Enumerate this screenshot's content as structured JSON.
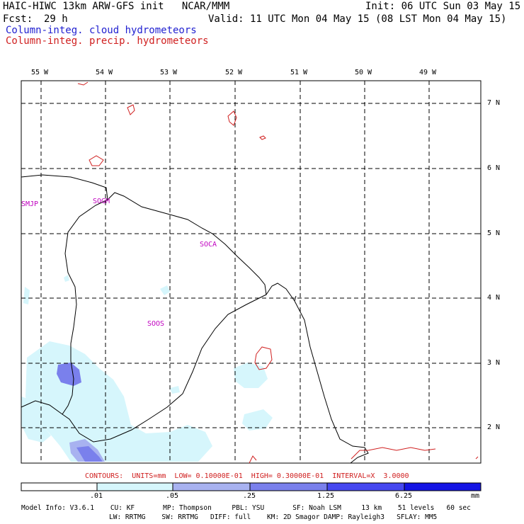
{
  "header": {
    "title": "HAIC-HIWC 13km ARW-GFS init   NCAR/MMM",
    "init": "Init: 06 UTC Sun 03 May 15",
    "fcst_label": "Fcst:",
    "fcst_value": "29 h",
    "valid": "Valid: 11 UTC Mon 04 May 15 (08 LST Mon 04 May 15)",
    "field1": "Column-integ. cloud hydrometeors",
    "field2": "Column-integ. precip. hydrometeors"
  },
  "colors": {
    "field1": "#1f1fd0",
    "field2": "#d02020",
    "stations": "#c000c0",
    "coast": "#000000",
    "shade1": "#d6f6fc",
    "shade2": "#a8b2f0",
    "shade3": "#7a80ec",
    "shade4": "#4648f0",
    "shade5": "#2a2af2",
    "shade6": "#1010e8"
  },
  "map": {
    "longitudes": [
      "55 W",
      "54 W",
      "53 W",
      "52 W",
      "51 W",
      "50 W",
      "49 W"
    ],
    "latitudes": [
      "7 N",
      "6 N",
      "5 N",
      "4 N",
      "3 N",
      "2 N"
    ],
    "stations": [
      "SMJP",
      "SOGM",
      "SOCA",
      "SOOS"
    ]
  },
  "contours_text": "CONTOURS:  UNITS=mm  LOW= 0.10000E-01  HIGH= 0.30000E-01  INTERVAL=X  3.0000",
  "colorbar": {
    "ticks": [
      ".01",
      ".05",
      ".25",
      "1.25",
      "6.25"
    ],
    "units": "mm"
  },
  "model_info": {
    "line1": "Model Info: V3.6.1    CU: KF       MP: Thompson     PBL: YSU       SF: Noah LSM     13 km    51 levels   60 sec",
    "line2": "LW: RRTMG    SW: RRTMG   DIFF: full    KM: 2D Smagor DAMP: Rayleigh3   SFLAY: MM5"
  }
}
